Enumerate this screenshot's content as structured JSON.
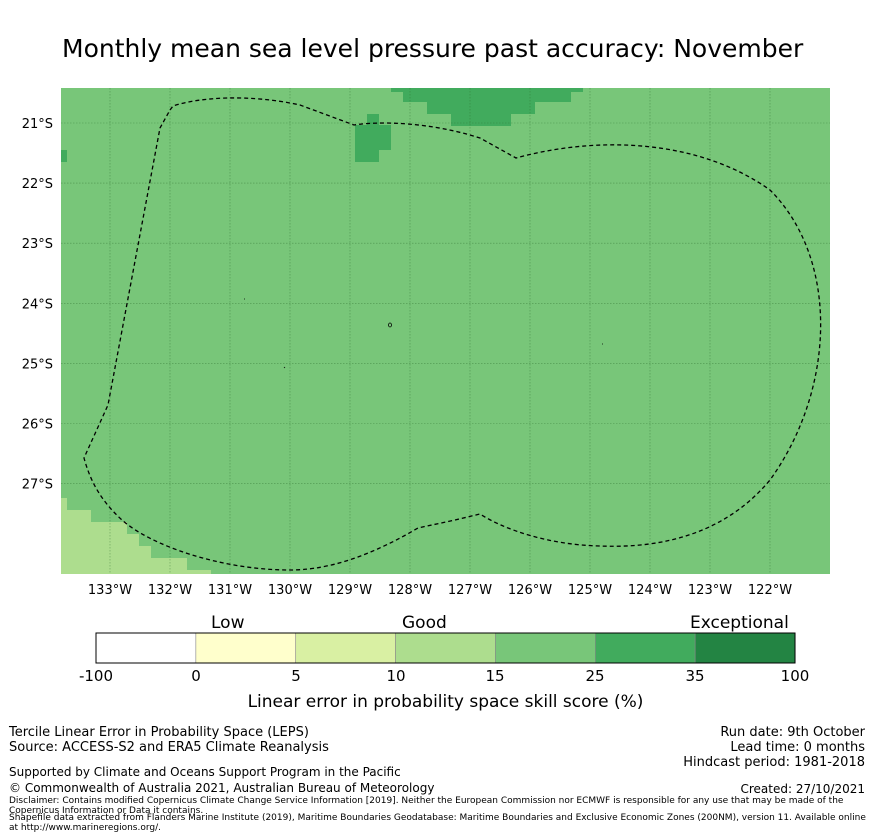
{
  "title": "Monthly mean sea level pressure past accuracy: November",
  "map": {
    "lat_labels": [
      "21°S",
      "22°S",
      "23°S",
      "24°S",
      "25°S",
      "26°S",
      "27°S"
    ],
    "lon_labels": [
      "133°W",
      "132°W",
      "131°W",
      "130°W",
      "129°W",
      "128°W",
      "127°W",
      "126°W",
      "125°W",
      "124°W",
      "123°W",
      "122°W"
    ],
    "region_description_colors": {
      "background_category": "#78c679",
      "higher_category": "#41ab5d",
      "lower_category": "#addd8e"
    },
    "eez_boundary_style": "dashed"
  },
  "colorbar": {
    "category_words": [
      "Low",
      "Good",
      "Exceptional"
    ],
    "ticks": [
      "-100",
      "0",
      "5",
      "10",
      "15",
      "25",
      "35",
      "100"
    ],
    "colors": [
      "#ffffff",
      "#ffffcc",
      "#d9f0a3",
      "#addd8e",
      "#78c679",
      "#41ab5d",
      "#238443"
    ],
    "label": "Linear error in probability space skill score (%)"
  },
  "footer": {
    "method": "Tercile Linear Error in Probability Space (LEPS)",
    "source": "Source: ACCESS-S2 and ERA5 Climate Reanalysis",
    "support": "Supported by Climate and Oceans Support Program in the Pacific",
    "copyright": "© Commonwealth of Australia 2021, Australian Bureau of Meteorology",
    "disclaimer": "Disclaimer: Contains modified Copernicus Climate Change Service Information [2019]. Neither the European Commission nor ECMWF is responsible for any use that may be made of the Copernicus Information or Data it contains.",
    "shapefile": "Shapefile data extracted from Flanders Marine Institute (2019), Maritime Boundaries Geodatabase: Maritime Boundaries and Exclusive Economic Zones (200NM), version 11. Available online at http://www.marineregions.org/.",
    "run_date": "Run date: 9th October",
    "lead_time": "Lead time: 0 months",
    "hindcast": "Hindcast period: 1981-2018",
    "created": "Created: 27/10/2021"
  }
}
